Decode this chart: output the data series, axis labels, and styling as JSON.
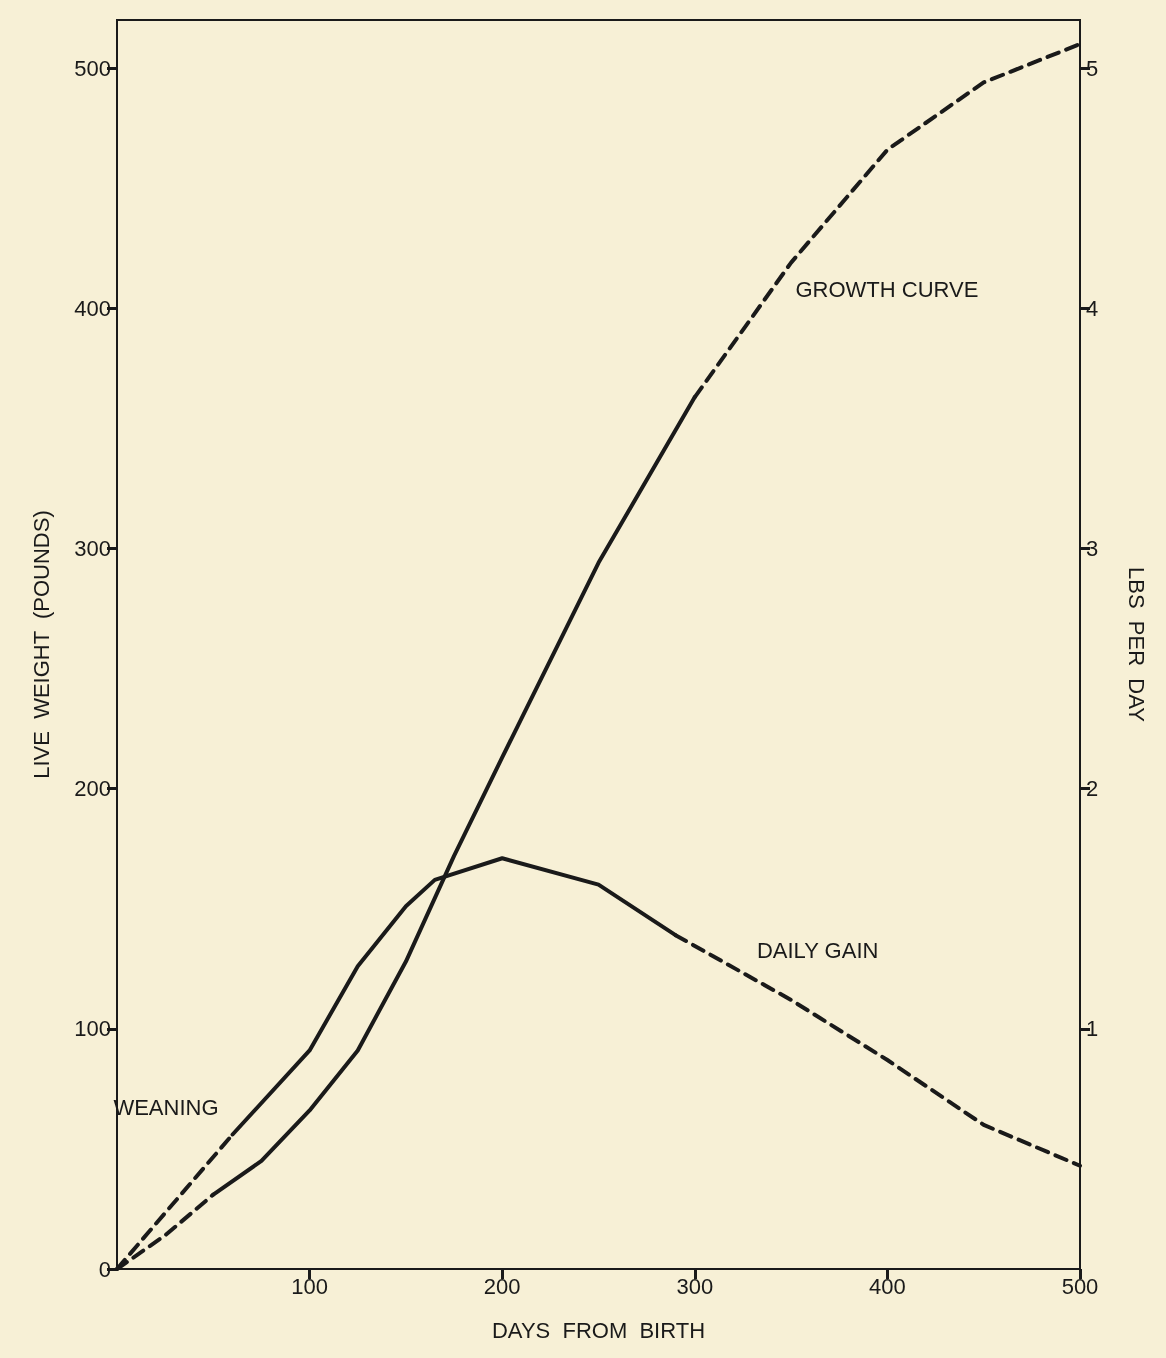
{
  "chart_data": {
    "type": "line",
    "xlabel": "DAYS  FROM  BIRTH",
    "ylabel": "LIVE  WEIGHT  (POUNDS)",
    "y2label": "LBS  PER  DAY",
    "xlim": [
      0,
      500
    ],
    "xticks": [
      100,
      200,
      300,
      400,
      500
    ],
    "ylim": [
      0,
      520
    ],
    "yticks": [
      0,
      100,
      200,
      300,
      400,
      500
    ],
    "y2lim": [
      0,
      5.2
    ],
    "y2ticks": [
      1,
      2,
      3,
      4,
      5
    ],
    "grid": false,
    "marker": "none",
    "series": [
      {
        "color": "#1a1a1a",
        "line_style": "dashed",
        "x": [
          0,
          25,
          50
        ],
        "values": [
          0,
          14,
          31
        ]
      },
      {
        "color": "#1a1a1a",
        "line_style": "solid",
        "x": [
          50,
          75,
          100,
          125,
          150,
          175,
          200,
          250,
          300
        ],
        "values": [
          31,
          45,
          66,
          91,
          128,
          172,
          213,
          294,
          363
        ]
      },
      {
        "color": "#1a1a1a",
        "line_style": "dashed",
        "x": [
          300,
          350,
          400,
          450,
          500
        ],
        "values": [
          363,
          419,
          466,
          494,
          510
        ]
      },
      {
        "color": "#1a1a1a",
        "line_style": "dashed",
        "axis": "y2",
        "x": [
          0,
          30,
          60
        ],
        "values": [
          0,
          0.28,
          0.56
        ]
      },
      {
        "color": "#1a1a1a",
        "line_style": "solid",
        "axis": "y2",
        "x": [
          60,
          100,
          125,
          150,
          165,
          200,
          250,
          290
        ],
        "values": [
          0.56,
          0.91,
          1.26,
          1.51,
          1.62,
          1.71,
          1.6,
          1.39
        ]
      },
      {
        "color": "#1a1a1a",
        "line_style": "dashed",
        "axis": "y2",
        "x": [
          290,
          350,
          400,
          450,
          500
        ],
        "values": [
          1.39,
          1.12,
          0.87,
          0.6,
          0.43
        ]
      }
    ],
    "annotations": [
      {
        "text": "GROWTH CURVE",
        "x": 345,
        "y": 415
      },
      {
        "text": "DAILY GAIN",
        "x": 325,
        "y": 122
      },
      {
        "text": "WEANING",
        "x": 60,
        "y": 57
      }
    ]
  }
}
